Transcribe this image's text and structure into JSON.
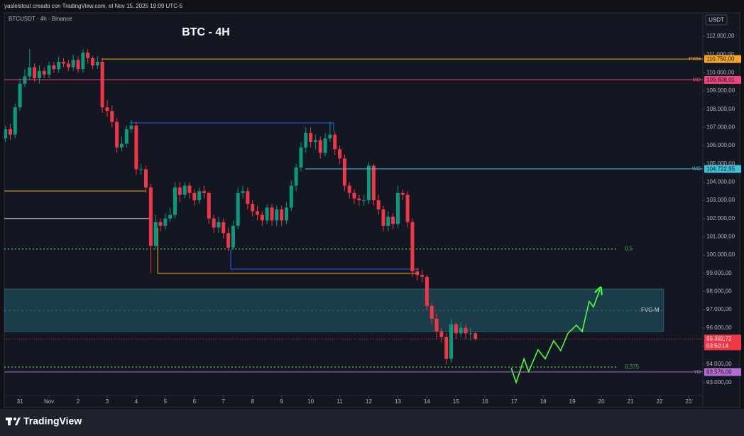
{
  "header": {
    "credit": "yaslelstout creado con TradingView.com, el Nov 15, 2025 19:09 UTC-5"
  },
  "footer": {
    "brand": "TradingView"
  },
  "chart_data": {
    "type": "candlestick",
    "title": "BTC - 4H",
    "subtitle": "BTCUSDT · 4h · Binance",
    "y_axis_label": "USDT",
    "up_color": "#089981",
    "down_color": "#f23645",
    "xlim": [
      -0.54,
      23.49
    ],
    "ylim": [
      92170,
      113210
    ],
    "xticks": [
      {
        "value": 0,
        "label": "31"
      },
      {
        "value": 1,
        "label": "Nov"
      },
      2,
      3,
      4,
      5,
      6,
      7,
      8,
      9,
      10,
      11,
      12,
      13,
      14,
      15,
      16,
      17,
      18,
      19,
      20,
      21,
      22,
      23
    ],
    "yticks": [
      {
        "value": 93000,
        "label": "93.000,00"
      },
      {
        "value": 94000,
        "label": "94.000,00"
      },
      {
        "value": 95000,
        "label": "95.000,00"
      },
      {
        "value": 96000,
        "label": "96.000,00"
      },
      {
        "value": 97000,
        "label": "97.000,00"
      },
      {
        "value": 98000,
        "label": "98.000,00"
      },
      {
        "value": 99000,
        "label": "99.000,00"
      },
      {
        "value": 100000,
        "label": "100.000,00"
      },
      {
        "value": 101000,
        "label": "101.000,00"
      },
      {
        "value": 102000,
        "label": "102.000,00"
      },
      {
        "value": 103000,
        "label": "103.000,00"
      },
      {
        "value": 104000,
        "label": "104.000,00"
      },
      {
        "value": 105000,
        "label": "105.000,00"
      },
      {
        "value": 106000,
        "label": "106.000,00"
      },
      {
        "value": 107000,
        "label": "107.000,00"
      },
      {
        "value": 108000,
        "label": "108.000,00"
      },
      {
        "value": 109000,
        "label": "109.000,00"
      },
      {
        "value": 110000,
        "label": "110.000,00"
      },
      {
        "value": 111000,
        "label": "111.000,00"
      },
      {
        "value": 112000,
        "label": "112.000,00"
      }
    ],
    "x": [
      -0.5,
      -0.333,
      -0.167,
      0,
      0.167,
      0.333,
      0.5,
      0.667,
      0.833,
      1,
      1.167,
      1.333,
      1.5,
      1.667,
      1.833,
      2,
      2.167,
      2.333,
      2.5,
      2.667,
      2.833,
      3,
      3.167,
      3.333,
      3.5,
      3.667,
      3.833,
      4,
      4.167,
      4.333,
      4.5,
      4.667,
      4.833,
      5,
      5.167,
      5.333,
      5.5,
      5.667,
      5.833,
      6,
      6.167,
      6.333,
      6.5,
      6.667,
      6.833,
      7,
      7.167,
      7.333,
      7.5,
      7.667,
      7.833,
      8,
      8.167,
      8.333,
      8.5,
      8.667,
      8.833,
      9,
      9.167,
      9.333,
      9.5,
      9.667,
      9.833,
      10,
      10.167,
      10.333,
      10.5,
      10.667,
      10.833,
      11,
      11.167,
      11.333,
      11.5,
      11.667,
      11.833,
      12,
      12.167,
      12.333,
      12.5,
      12.667,
      12.833,
      13,
      13.167,
      13.333,
      13.5,
      13.667,
      13.833,
      14,
      14.167,
      14.333,
      14.5,
      14.667,
      14.833,
      15,
      15.167,
      15.333,
      15.5,
      15.667
    ],
    "open": [
      106400,
      106900,
      106600,
      108100,
      109400,
      109800,
      110300,
      109700,
      110100,
      109900,
      110400,
      110200,
      110600,
      110500,
      110300,
      110700,
      110200,
      111100,
      110800,
      110400,
      110600,
      108100,
      107900,
      107300,
      105900,
      106100,
      106900,
      107100,
      104700,
      104700,
      103700,
      100500,
      101800,
      101600,
      102000,
      102200,
      103700,
      103300,
      103800,
      103400,
      103000,
      103500,
      103400,
      102000,
      101500,
      101800,
      101200,
      100400,
      101600,
      103400,
      103500,
      102800,
      102400,
      102200,
      101900,
      102600,
      101900,
      102500,
      101900,
      102600,
      103800,
      104800,
      105900,
      106700,
      106200,
      106300,
      105600,
      106400,
      106600,
      105800,
      105300,
      103800,
      103400,
      103100,
      103000,
      103000,
      104900,
      103000,
      102500,
      101600,
      102100,
      101700,
      103400,
      103300,
      101800,
      99100,
      98900,
      98800,
      97200,
      96500,
      95800,
      95500,
      94300,
      96200,
      95700,
      96000,
      95700,
      95700
    ],
    "high": [
      107100,
      107200,
      108300,
      109700,
      110200,
      111300,
      110500,
      110400,
      110300,
      110600,
      110600,
      110900,
      110800,
      110700,
      111000,
      110900,
      111300,
      111300,
      110900,
      110900,
      110800,
      108500,
      108200,
      107500,
      106500,
      107100,
      107400,
      107300,
      105000,
      104900,
      103900,
      102200,
      102000,
      102300,
      102600,
      104000,
      104000,
      104000,
      104000,
      103600,
      103700,
      103800,
      103500,
      102200,
      102100,
      102000,
      101500,
      101900,
      103700,
      103800,
      103700,
      103000,
      102700,
      102400,
      102800,
      102800,
      102700,
      102700,
      102900,
      104100,
      105000,
      106200,
      107000,
      107000,
      106600,
      106500,
      106700,
      107300,
      106800,
      106000,
      105500,
      104000,
      103600,
      103300,
      103300,
      105100,
      105000,
      103300,
      102700,
      102400,
      102300,
      103800,
      103600,
      103500,
      102000,
      99300,
      99200,
      98900,
      97400,
      96800,
      96000,
      95700,
      96500,
      96300,
      96300,
      96200,
      96000,
      95800
    ],
    "low": [
      106200,
      106300,
      106400,
      107900,
      109200,
      109600,
      109500,
      109400,
      109700,
      109700,
      110000,
      110000,
      110300,
      110100,
      110100,
      110000,
      110000,
      110500,
      110200,
      110200,
      107800,
      107600,
      107000,
      105600,
      105700,
      105900,
      106700,
      104400,
      104400,
      103400,
      99000,
      100300,
      101300,
      101400,
      101800,
      102000,
      102900,
      103100,
      103100,
      102700,
      102800,
      103100,
      101700,
      101200,
      101200,
      100900,
      100200,
      100300,
      101400,
      103100,
      102500,
      102100,
      101900,
      101600,
      101700,
      101600,
      101600,
      101600,
      101700,
      102400,
      103500,
      104600,
      105600,
      105900,
      105800,
      105300,
      105400,
      106200,
      105500,
      105000,
      103500,
      103100,
      102800,
      102700,
      102700,
      102800,
      102700,
      102200,
      101300,
      101300,
      101400,
      101500,
      103000,
      101500,
      98800,
      98600,
      98500,
      97000,
      96200,
      95400,
      95200,
      94000,
      94100,
      95400,
      95500,
      95400,
      95300,
      95300
    ],
    "close": [
      106900,
      106600,
      108100,
      109400,
      109800,
      110300,
      109700,
      110100,
      109900,
      110400,
      110200,
      110600,
      110500,
      110300,
      110700,
      110200,
      111100,
      110800,
      110400,
      110600,
      108100,
      107900,
      107300,
      105900,
      106100,
      106900,
      107100,
      104700,
      104700,
      103700,
      100500,
      101800,
      101600,
      102000,
      102200,
      103700,
      103300,
      103800,
      103400,
      103000,
      103500,
      103400,
      102000,
      101500,
      101800,
      101200,
      100400,
      101600,
      103400,
      103500,
      102800,
      102400,
      102200,
      101900,
      102600,
      101900,
      102500,
      101900,
      102600,
      103800,
      104800,
      105900,
      106700,
      106200,
      106300,
      105600,
      106400,
      106600,
      105800,
      105300,
      103800,
      103400,
      103100,
      103000,
      103000,
      104900,
      103000,
      102500,
      101600,
      102100,
      101700,
      103400,
      103300,
      101800,
      99100,
      98900,
      98800,
      97200,
      96500,
      95800,
      95500,
      94300,
      96200,
      95700,
      96000,
      95700,
      95700,
      95392.72
    ],
    "levels": [
      {
        "name": "PWH",
        "value": 110750,
        "label": "110.750,00",
        "color": "#f6a623",
        "x_start": 2.81
      },
      {
        "name": "MO",
        "value": 109608.01,
        "label": "109.608,01",
        "color": "#f0457a",
        "x_start": -0.54
      },
      {
        "name": "WO",
        "value": 104722.95,
        "label": "104.722,95",
        "color": "#3fc1d6",
        "x_start": 9.81
      },
      {
        "name": "YO",
        "value": 93576,
        "label": "93.576,00",
        "color": "#b56bd0",
        "x_start": -0.54
      }
    ],
    "last_price": {
      "value": 95392.72,
      "label": "95.392,72",
      "countdown": "03:50:14",
      "color": "#f23645"
    },
    "fib_levels": [
      {
        "label": "0,5",
        "value": 100330,
        "x_end": 20.56,
        "color": "#4caf50"
      },
      {
        "label": "0,375",
        "value": 93850,
        "x_end": 20.56,
        "color": "#4caf50"
      }
    ],
    "zone": {
      "label": "FVG-M",
      "top": 98130,
      "bottom": 95800,
      "mid": 96960,
      "x_end": 22.14,
      "color": "#1b3d49"
    },
    "drawings": [
      {
        "color": "#f6a623",
        "points": [
          [
            -0.54,
            103510
          ],
          [
            4.32,
            103510
          ]
        ]
      },
      {
        "color": "#d1d4dc",
        "points": [
          [
            -0.54,
            102000
          ],
          [
            4.5,
            102000
          ]
        ]
      },
      {
        "color": "#2962ff",
        "points": [
          [
            3.78,
            107250
          ],
          [
            10.79,
            107250
          ],
          [
            10.79,
            106800
          ]
        ]
      },
      {
        "color": "#2962ff",
        "points": [
          [
            7.25,
            100300
          ],
          [
            7.25,
            99220
          ],
          [
            13.72,
            99220
          ]
        ]
      },
      {
        "color": "#f6a623",
        "points": [
          [
            4.74,
            101500
          ],
          [
            4.74,
            98990
          ],
          [
            13.72,
            98990
          ]
        ]
      }
    ],
    "projection": {
      "color": "#4cff3c",
      "points": [
        [
          16.9,
          93800
        ],
        [
          17.07,
          93000
        ],
        [
          17.34,
          94300
        ],
        [
          17.5,
          93600
        ],
        [
          17.82,
          94800
        ],
        [
          18.07,
          94300
        ],
        [
          18.36,
          95300
        ],
        [
          18.6,
          94750
        ],
        [
          18.85,
          95700
        ],
        [
          19.14,
          96150
        ],
        [
          19.34,
          95800
        ],
        [
          19.58,
          97450
        ],
        [
          19.73,
          97150
        ],
        [
          19.95,
          98100
        ]
      ]
    }
  }
}
